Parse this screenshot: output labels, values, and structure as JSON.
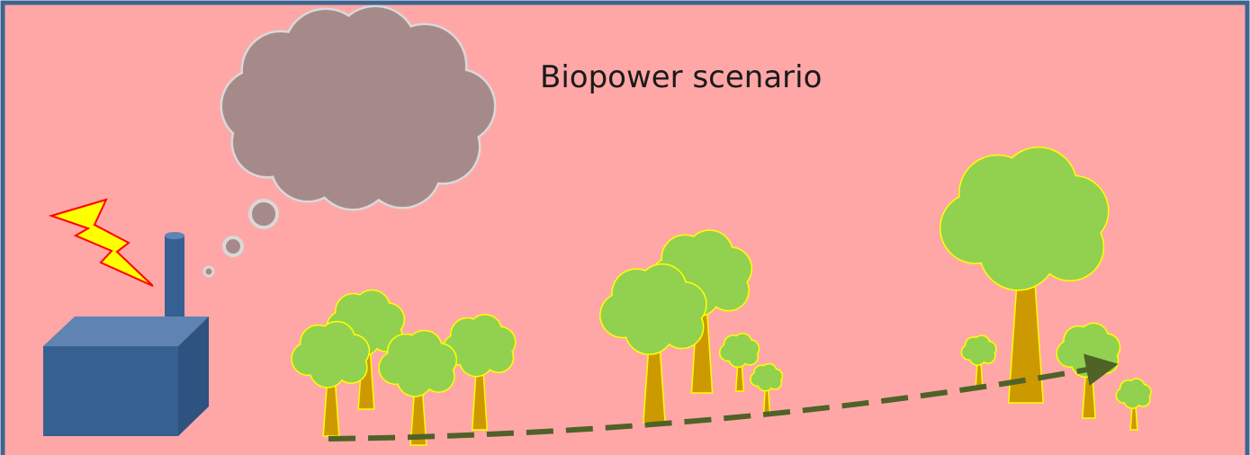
{
  "title": "Biopower scenario"
}
